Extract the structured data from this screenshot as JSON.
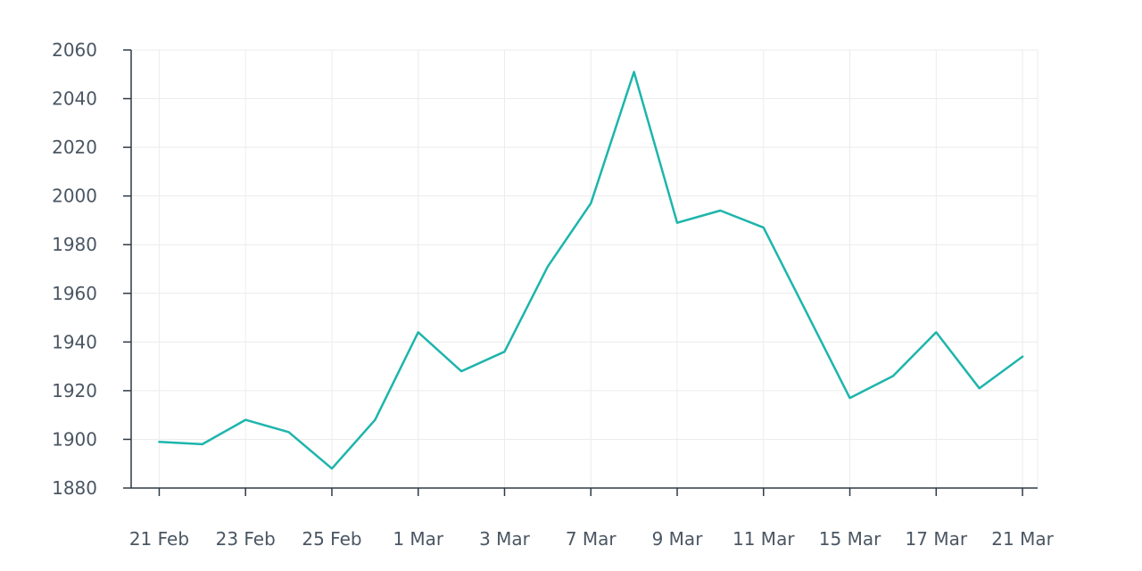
{
  "chart_data": {
    "type": "line",
    "title": "",
    "xlabel": "",
    "ylabel": "",
    "ylim": [
      1880,
      2060
    ],
    "yticks": [
      1880,
      1900,
      1920,
      1940,
      1960,
      1980,
      2000,
      2020,
      2040,
      2060
    ],
    "xticks": [
      "21 Feb",
      "23 Feb",
      "25 Feb",
      "1 Mar",
      "3 Mar",
      "7 Mar",
      "9 Mar",
      "11 Mar",
      "15 Mar",
      "17 Mar",
      "21 Mar"
    ],
    "grid": true,
    "color": "#1db5ac",
    "series": [
      {
        "points": [
          {
            "x": "21 Feb",
            "y": 1899
          },
          {
            "x": "22 Feb",
            "y": 1898
          },
          {
            "x": "23 Feb",
            "y": 1908
          },
          {
            "x": "24 Feb",
            "y": 1903
          },
          {
            "x": "25 Feb",
            "y": 1888
          },
          {
            "x": "28 Feb",
            "y": 1908
          },
          {
            "x": "1 Mar",
            "y": 1944
          },
          {
            "x": "2 Mar",
            "y": 1928
          },
          {
            "x": "3 Mar",
            "y": 1936
          },
          {
            "x": "4 Mar",
            "y": 1971
          },
          {
            "x": "7 Mar",
            "y": 1997
          },
          {
            "x": "8 Mar",
            "y": 2051
          },
          {
            "x": "9 Mar",
            "y": 1989
          },
          {
            "x": "10 Mar",
            "y": 1994
          },
          {
            "x": "11 Mar",
            "y": 1987
          },
          {
            "x": "14 Mar",
            "y": 1952
          },
          {
            "x": "15 Mar",
            "y": 1917
          },
          {
            "x": "16 Mar",
            "y": 1926
          },
          {
            "x": "17 Mar",
            "y": 1944
          },
          {
            "x": "18 Mar",
            "y": 1921
          },
          {
            "x": "21 Mar",
            "y": 1934
          }
        ]
      }
    ]
  }
}
